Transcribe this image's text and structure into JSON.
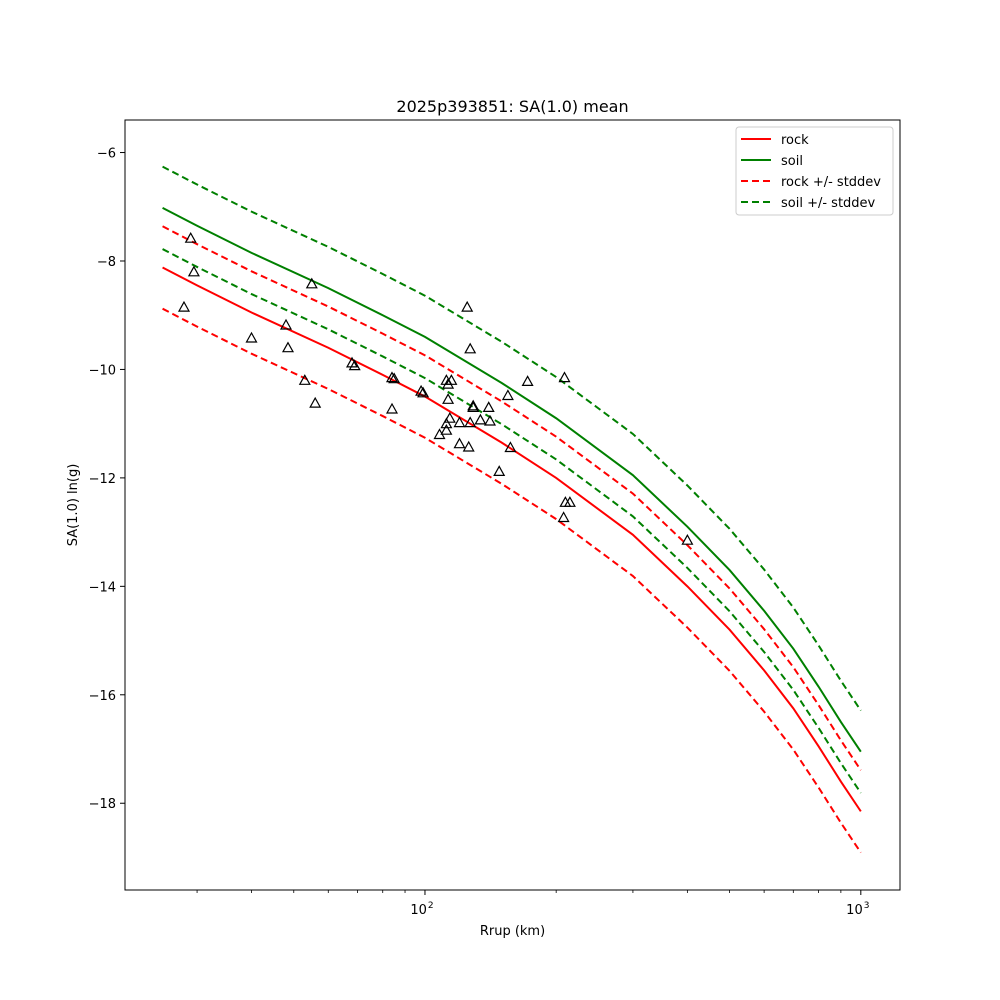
{
  "chart_data": {
    "type": "line",
    "title": "2025p393851: SA(1.0) mean",
    "xlabel": "Rrup (km)",
    "ylabel": "SA(1.0) ln(g)",
    "xscale": "log",
    "xlim": [
      20.5,
      1230
    ],
    "ylim": [
      -19.6,
      -5.4
    ],
    "x_ticks": [
      {
        "value": 100,
        "base": "10",
        "exp": "2"
      },
      {
        "value": 1000,
        "base": "10",
        "exp": "3"
      }
    ],
    "y_ticks": [
      -6,
      -8,
      -10,
      -12,
      -14,
      -16,
      -18
    ],
    "grid": false,
    "legend_position": "top-right",
    "colors": {
      "rock": "#ff0000",
      "soil": "#008000",
      "markers": "#000000"
    },
    "series": [
      {
        "name": "rock",
        "style": "solid",
        "color": "#ff0000",
        "x": [
          25,
          30,
          40,
          60,
          80,
          100,
          150,
          200,
          300,
          400,
          500,
          600,
          700,
          800,
          900,
          1000
        ],
        "y": [
          -8.12,
          -8.45,
          -8.95,
          -9.6,
          -10.1,
          -10.5,
          -11.35,
          -12.0,
          -13.05,
          -14.0,
          -14.8,
          -15.55,
          -16.25,
          -16.95,
          -17.6,
          -18.15
        ]
      },
      {
        "name": "soil",
        "style": "solid",
        "color": "#008000",
        "x": [
          25,
          30,
          40,
          60,
          80,
          100,
          150,
          200,
          300,
          400,
          500,
          600,
          700,
          800,
          900,
          1000
        ],
        "y": [
          -7.02,
          -7.35,
          -7.85,
          -8.5,
          -9.0,
          -9.4,
          -10.25,
          -10.9,
          -11.95,
          -12.9,
          -13.7,
          -14.45,
          -15.15,
          -15.85,
          -16.5,
          -17.05
        ]
      },
      {
        "name": "rock +/- stddev",
        "style": "dashed",
        "color": "#ff0000",
        "x": [
          25,
          30,
          40,
          60,
          80,
          100,
          150,
          200,
          300,
          400,
          500,
          600,
          700,
          800,
          900,
          1000
        ],
        "y": [
          -7.36,
          -7.69,
          -8.19,
          -8.84,
          -9.34,
          -9.74,
          -10.59,
          -11.24,
          -12.29,
          -13.24,
          -14.04,
          -14.79,
          -15.49,
          -16.19,
          -16.84,
          -17.39
        ]
      },
      {
        "name": "",
        "style": "dashed",
        "color": "#ff0000",
        "x": [
          25,
          30,
          40,
          60,
          80,
          100,
          150,
          200,
          300,
          400,
          500,
          600,
          700,
          800,
          900,
          1000
        ],
        "y": [
          -8.88,
          -9.21,
          -9.71,
          -10.36,
          -10.86,
          -11.26,
          -12.11,
          -12.76,
          -13.81,
          -14.76,
          -15.56,
          -16.31,
          -17.01,
          -17.71,
          -18.36,
          -18.91
        ]
      },
      {
        "name": "soil +/- stddev",
        "style": "dashed",
        "color": "#008000",
        "x": [
          25,
          30,
          40,
          60,
          80,
          100,
          150,
          200,
          300,
          400,
          500,
          600,
          700,
          800,
          900,
          1000
        ],
        "y": [
          -6.26,
          -6.59,
          -7.09,
          -7.74,
          -8.24,
          -8.64,
          -9.49,
          -10.14,
          -11.19,
          -12.14,
          -12.94,
          -13.69,
          -14.39,
          -15.09,
          -15.74,
          -16.29
        ]
      },
      {
        "name": "",
        "style": "dashed",
        "color": "#008000",
        "x": [
          25,
          30,
          40,
          60,
          80,
          100,
          150,
          200,
          300,
          400,
          500,
          600,
          700,
          800,
          900,
          1000
        ],
        "y": [
          -7.78,
          -8.11,
          -8.61,
          -9.26,
          -9.76,
          -10.16,
          -11.01,
          -11.66,
          -12.71,
          -13.66,
          -14.46,
          -15.21,
          -15.91,
          -16.61,
          -17.26,
          -17.81
        ]
      }
    ],
    "observations": [
      {
        "x": 28,
        "y": -8.85
      },
      {
        "x": 29,
        "y": -7.58
      },
      {
        "x": 29.5,
        "y": -8.2
      },
      {
        "x": 40,
        "y": -9.42
      },
      {
        "x": 48,
        "y": -9.18
      },
      {
        "x": 48.5,
        "y": -9.6
      },
      {
        "x": 55,
        "y": -8.42
      },
      {
        "x": 53,
        "y": -10.2
      },
      {
        "x": 56,
        "y": -10.62
      },
      {
        "x": 68,
        "y": -9.88
      },
      {
        "x": 69,
        "y": -9.93
      },
      {
        "x": 84,
        "y": -10.15
      },
      {
        "x": 85,
        "y": -10.17
      },
      {
        "x": 84,
        "y": -10.73
      },
      {
        "x": 98,
        "y": -10.4
      },
      {
        "x": 99,
        "y": -10.43
      },
      {
        "x": 108,
        "y": -11.2
      },
      {
        "x": 112,
        "y": -11.0
      },
      {
        "x": 112,
        "y": -11.12
      },
      {
        "x": 112,
        "y": -10.2
      },
      {
        "x": 113,
        "y": -10.27
      },
      {
        "x": 113,
        "y": -10.55
      },
      {
        "x": 114,
        "y": -10.9
      },
      {
        "x": 115,
        "y": -10.2
      },
      {
        "x": 120,
        "y": -11.37
      },
      {
        "x": 120,
        "y": -10.98
      },
      {
        "x": 125,
        "y": -8.85
      },
      {
        "x": 126,
        "y": -11.43
      },
      {
        "x": 127,
        "y": -9.62
      },
      {
        "x": 127,
        "y": -10.98
      },
      {
        "x": 129,
        "y": -10.67
      },
      {
        "x": 129,
        "y": -10.7
      },
      {
        "x": 134,
        "y": -10.93
      },
      {
        "x": 140,
        "y": -10.7
      },
      {
        "x": 141,
        "y": -10.95
      },
      {
        "x": 148,
        "y": -11.88
      },
      {
        "x": 155,
        "y": -10.48
      },
      {
        "x": 157,
        "y": -11.44
      },
      {
        "x": 172,
        "y": -10.22
      },
      {
        "x": 209,
        "y": -10.15
      },
      {
        "x": 208,
        "y": -12.73
      },
      {
        "x": 210,
        "y": -12.45
      },
      {
        "x": 215,
        "y": -12.45
      },
      {
        "x": 400,
        "y": -13.15
      }
    ]
  }
}
